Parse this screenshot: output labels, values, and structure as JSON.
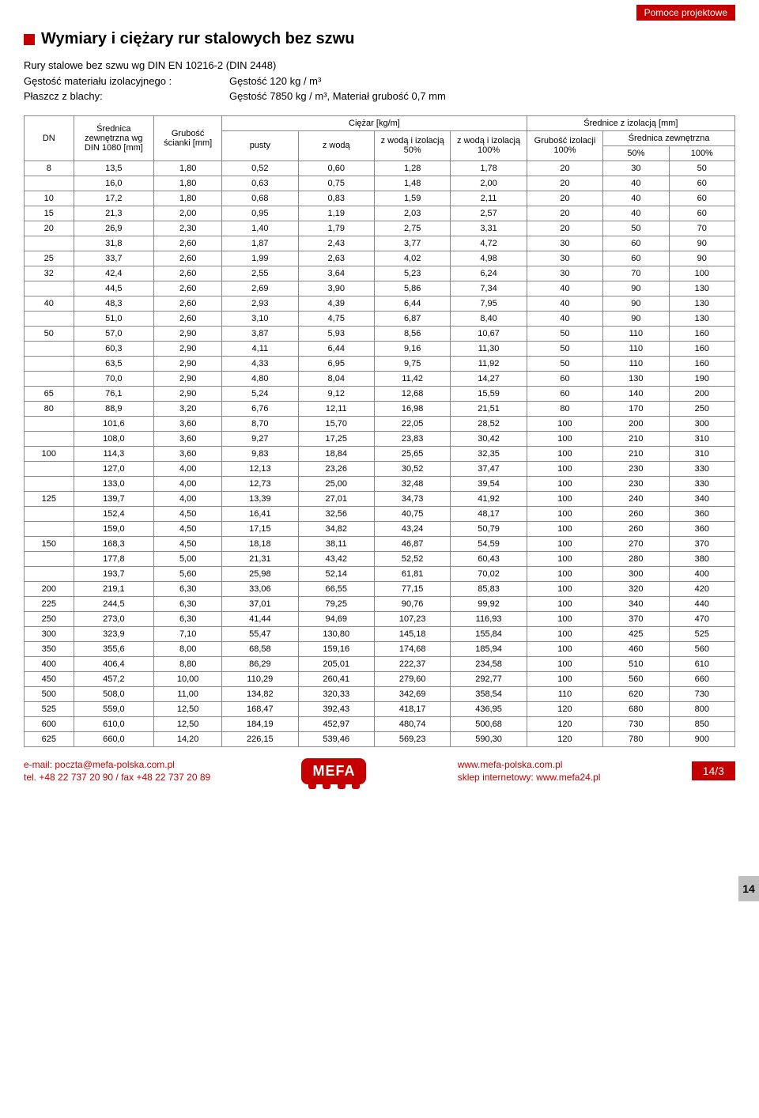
{
  "badge_top": "Pomoce projektowe",
  "title": "Wymiary i ciężary rur stalowych bez szwu",
  "meta": {
    "line1": "Rury stalowe bez szwu wg DIN EN 10216-2 (DIN 2448)",
    "row1_label": "Gęstość materiału izolacyjnego :",
    "row1_val": "Gęstość 120 kg / m³",
    "row2_label": "Płaszcz z blachy:",
    "row2_val": "Gęstość 7850 kg / m³, Materiał grubość 0,7 mm"
  },
  "headers": {
    "dn": "DN",
    "od": "Średnica zewnętrzna wg DIN 1080 [mm]",
    "wt": "Grubość ścianki [mm]",
    "weight_group": "Ciężar [kg/m]",
    "empty": "pusty",
    "w_water": "z wodą",
    "w_iso50": "z wodą i izolacją 50%",
    "w_iso100": "z wodą i izolacją 100%",
    "dia_group": "Średnice z izolacją [mm]",
    "iso_thick": "Grubość izolacji 100%",
    "dia_ext": "Średnica zewnętrzna",
    "p50": "50%",
    "p100": "100%"
  },
  "rows": [
    [
      "8",
      "13,5",
      "1,80",
      "0,52",
      "0,60",
      "1,28",
      "1,78",
      "20",
      "30",
      "50"
    ],
    [
      "",
      "16,0",
      "1,80",
      "0,63",
      "0,75",
      "1,48",
      "2,00",
      "20",
      "40",
      "60"
    ],
    [
      "10",
      "17,2",
      "1,80",
      "0,68",
      "0,83",
      "1,59",
      "2,11",
      "20",
      "40",
      "60"
    ],
    [
      "15",
      "21,3",
      "2,00",
      "0,95",
      "1,19",
      "2,03",
      "2,57",
      "20",
      "40",
      "60"
    ],
    [
      "20",
      "26,9",
      "2,30",
      "1,40",
      "1,79",
      "2,75",
      "3,31",
      "20",
      "50",
      "70"
    ],
    [
      "",
      "31,8",
      "2,60",
      "1,87",
      "2,43",
      "3,77",
      "4,72",
      "30",
      "60",
      "90"
    ],
    [
      "25",
      "33,7",
      "2,60",
      "1,99",
      "2,63",
      "4,02",
      "4,98",
      "30",
      "60",
      "90"
    ],
    [
      "32",
      "42,4",
      "2,60",
      "2,55",
      "3,64",
      "5,23",
      "6,24",
      "30",
      "70",
      "100"
    ],
    [
      "",
      "44,5",
      "2,60",
      "2,69",
      "3,90",
      "5,86",
      "7,34",
      "40",
      "90",
      "130"
    ],
    [
      "40",
      "48,3",
      "2,60",
      "2,93",
      "4,39",
      "6,44",
      "7,95",
      "40",
      "90",
      "130"
    ],
    [
      "",
      "51,0",
      "2,60",
      "3,10",
      "4,75",
      "6,87",
      "8,40",
      "40",
      "90",
      "130"
    ],
    [
      "50",
      "57,0",
      "2,90",
      "3,87",
      "5,93",
      "8,56",
      "10,67",
      "50",
      "110",
      "160"
    ],
    [
      "",
      "60,3",
      "2,90",
      "4,11",
      "6,44",
      "9,16",
      "11,30",
      "50",
      "110",
      "160"
    ],
    [
      "",
      "63,5",
      "2,90",
      "4,33",
      "6,95",
      "9,75",
      "11,92",
      "50",
      "110",
      "160"
    ],
    [
      "",
      "70,0",
      "2,90",
      "4,80",
      "8,04",
      "11,42",
      "14,27",
      "60",
      "130",
      "190"
    ],
    [
      "65",
      "76,1",
      "2,90",
      "5,24",
      "9,12",
      "12,68",
      "15,59",
      "60",
      "140",
      "200"
    ],
    [
      "80",
      "88,9",
      "3,20",
      "6,76",
      "12,11",
      "16,98",
      "21,51",
      "80",
      "170",
      "250"
    ],
    [
      "",
      "101,6",
      "3,60",
      "8,70",
      "15,70",
      "22,05",
      "28,52",
      "100",
      "200",
      "300"
    ],
    [
      "",
      "108,0",
      "3,60",
      "9,27",
      "17,25",
      "23,83",
      "30,42",
      "100",
      "210",
      "310"
    ],
    [
      "100",
      "114,3",
      "3,60",
      "9,83",
      "18,84",
      "25,65",
      "32,35",
      "100",
      "210",
      "310"
    ],
    [
      "",
      "127,0",
      "4,00",
      "12,13",
      "23,26",
      "30,52",
      "37,47",
      "100",
      "230",
      "330"
    ],
    [
      "",
      "133,0",
      "4,00",
      "12,73",
      "25,00",
      "32,48",
      "39,54",
      "100",
      "230",
      "330"
    ],
    [
      "125",
      "139,7",
      "4,00",
      "13,39",
      "27,01",
      "34,73",
      "41,92",
      "100",
      "240",
      "340"
    ],
    [
      "",
      "152,4",
      "4,50",
      "16,41",
      "32,56",
      "40,75",
      "48,17",
      "100",
      "260",
      "360"
    ],
    [
      "",
      "159,0",
      "4,50",
      "17,15",
      "34,82",
      "43,24",
      "50,79",
      "100",
      "260",
      "360"
    ],
    [
      "150",
      "168,3",
      "4,50",
      "18,18",
      "38,11",
      "46,87",
      "54,59",
      "100",
      "270",
      "370"
    ],
    [
      "",
      "177,8",
      "5,00",
      "21,31",
      "43,42",
      "52,52",
      "60,43",
      "100",
      "280",
      "380"
    ],
    [
      "",
      "193,7",
      "5,60",
      "25,98",
      "52,14",
      "61,81",
      "70,02",
      "100",
      "300",
      "400"
    ],
    [
      "200",
      "219,1",
      "6,30",
      "33,06",
      "66,55",
      "77,15",
      "85,83",
      "100",
      "320",
      "420"
    ],
    [
      "225",
      "244,5",
      "6,30",
      "37,01",
      "79,25",
      "90,76",
      "99,92",
      "100",
      "340",
      "440"
    ],
    [
      "250",
      "273,0",
      "6,30",
      "41,44",
      "94,69",
      "107,23",
      "116,93",
      "100",
      "370",
      "470"
    ],
    [
      "300",
      "323,9",
      "7,10",
      "55,47",
      "130,80",
      "145,18",
      "155,84",
      "100",
      "425",
      "525"
    ],
    [
      "350",
      "355,6",
      "8,00",
      "68,58",
      "159,16",
      "174,68",
      "185,94",
      "100",
      "460",
      "560"
    ],
    [
      "400",
      "406,4",
      "8,80",
      "86,29",
      "205,01",
      "222,37",
      "234,58",
      "100",
      "510",
      "610"
    ],
    [
      "450",
      "457,2",
      "10,00",
      "110,29",
      "260,41",
      "279,60",
      "292,77",
      "100",
      "560",
      "660"
    ],
    [
      "500",
      "508,0",
      "11,00",
      "134,82",
      "320,33",
      "342,69",
      "358,54",
      "110",
      "620",
      "730"
    ],
    [
      "525",
      "559,0",
      "12,50",
      "168,47",
      "392,43",
      "418,17",
      "436,95",
      "120",
      "680",
      "800"
    ],
    [
      "600",
      "610,0",
      "12,50",
      "184,19",
      "452,97",
      "480,74",
      "500,68",
      "120",
      "730",
      "850"
    ],
    [
      "625",
      "660,0",
      "14,20",
      "226,15",
      "539,46",
      "569,23",
      "590,30",
      "120",
      "780",
      "900"
    ]
  ],
  "footer": {
    "email_label": "e-mail: poczta@mefa-polska.com.pl",
    "tel": "tel. +48 22 737 20 90  /  fax +48 22 737 20 89",
    "logo": "MEFA",
    "site1": "www.mefa-polska.com.pl",
    "site2": "sklep internetowy: www.mefa24.pl",
    "page": "14/3",
    "side": "14"
  }
}
